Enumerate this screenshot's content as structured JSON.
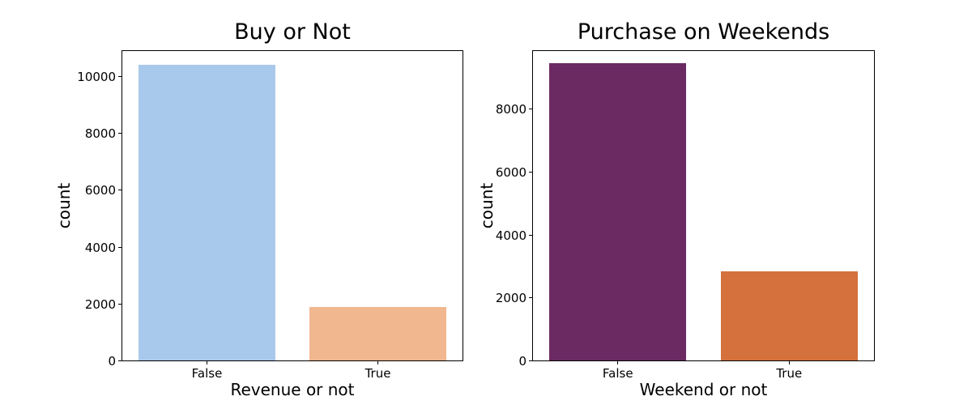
{
  "figure": {
    "background": "#ffffff",
    "text_color": "#000000"
  },
  "chart_data": [
    {
      "type": "bar",
      "title": "Buy or Not",
      "xlabel": "Revenue or not",
      "ylabel": "count",
      "categories": [
        "False",
        "True"
      ],
      "values": [
        10422,
        1908
      ],
      "bar_colors": [
        "#a9c9ec",
        "#f1b78f"
      ],
      "yticks": [
        0,
        2000,
        4000,
        6000,
        8000,
        10000
      ],
      "ylim": [
        0,
        10940
      ],
      "grid": false,
      "legend": "none"
    },
    {
      "type": "bar",
      "title": "Purchase on Weekends",
      "xlabel": "Weekend or not",
      "ylabel": "count",
      "categories": [
        "False",
        "True"
      ],
      "values": [
        9462,
        2868
      ],
      "bar_colors": [
        "#6c2a63",
        "#d4713c"
      ],
      "yticks": [
        0,
        2000,
        4000,
        6000,
        8000
      ],
      "ylim": [
        0,
        9878
      ],
      "grid": false,
      "legend": "none"
    }
  ]
}
